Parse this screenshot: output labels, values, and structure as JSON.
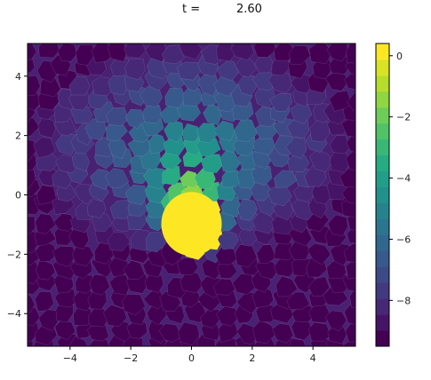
{
  "chart_data": {
    "type": "heatmap",
    "title": {
      "label": "t =",
      "value": "2.60"
    },
    "xlim": [
      -5.4,
      5.4
    ],
    "ylim": [
      -5.1,
      5.1
    ],
    "x_ticks": [
      -4,
      -2,
      0,
      2,
      4
    ],
    "x_tick_labels": [
      "−4",
      "−2",
      "0",
      "2",
      "4"
    ],
    "y_ticks": [
      4,
      2,
      0,
      -2,
      -4
    ],
    "y_tick_labels": [
      "4",
      "2",
      "0",
      "−2",
      "−4"
    ],
    "colorbar": {
      "min": -9.5,
      "max": 0.4,
      "levels": 19,
      "ticks": [
        0,
        -2,
        -4,
        -6,
        -8
      ],
      "tick_labels": [
        "0",
        "−2",
        "−4",
        "−6",
        "−8"
      ]
    },
    "colormap": "viridis",
    "colors": {
      "low": "#440154",
      "background_cell": "#482173",
      "mid": "#21918c",
      "high": "#fde725"
    },
    "field_description": {
      "dense_core_center": [
        0.0,
        -1.1
      ],
      "core_radius": 1.0,
      "cloud_center": [
        0.0,
        1.6
      ],
      "cloud_extent_x": 5.0,
      "cloud_extent_y": 3.4
    }
  }
}
